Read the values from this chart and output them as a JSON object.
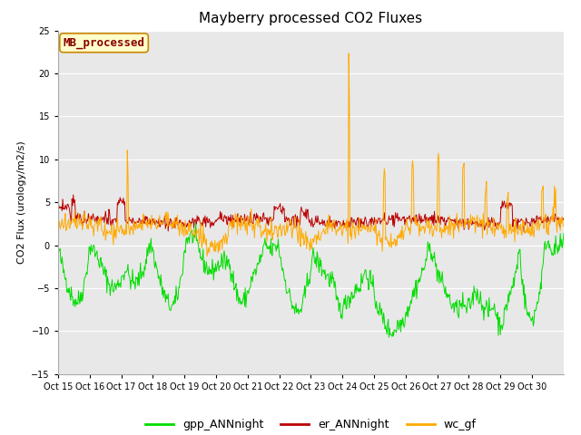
{
  "title": "Mayberry processed CO2 Fluxes",
  "ylabel": "CO2 Flux (urology/m2/s)",
  "ylim": [
    -15,
    25
  ],
  "yticks": [
    -15,
    -10,
    -5,
    0,
    5,
    10,
    15,
    20,
    25
  ],
  "xtick_labels": [
    "Oct 15",
    "Oct 16",
    "Oct 17",
    "Oct 18",
    "Oct 19",
    "Oct 20",
    "Oct 21",
    "Oct 22",
    "Oct 23",
    "Oct 24",
    "Oct 25",
    "Oct 26",
    "Oct 27",
    "Oct 28",
    "Oct 29",
    "Oct 30"
  ],
  "color_gpp": "#00dd00",
  "color_er": "#bb0000",
  "color_wc": "#ffaa00",
  "label_gpp": "gpp_ANNnight",
  "label_er": "er_ANNnight",
  "label_wc": "wc_gf",
  "legend_box_text": "MB_processed",
  "legend_box_facecolor": "#ffffcc",
  "legend_box_edgecolor": "#cc8800",
  "legend_box_textcolor": "#880000",
  "plot_bg_color": "#e8e8e8",
  "fig_bg_color": "#ffffff",
  "title_fontsize": 11,
  "axis_label_fontsize": 8,
  "tick_fontsize": 7,
  "legend_fontsize": 9,
  "linewidth": 0.7,
  "n_days": 16,
  "n_per_day": 48
}
